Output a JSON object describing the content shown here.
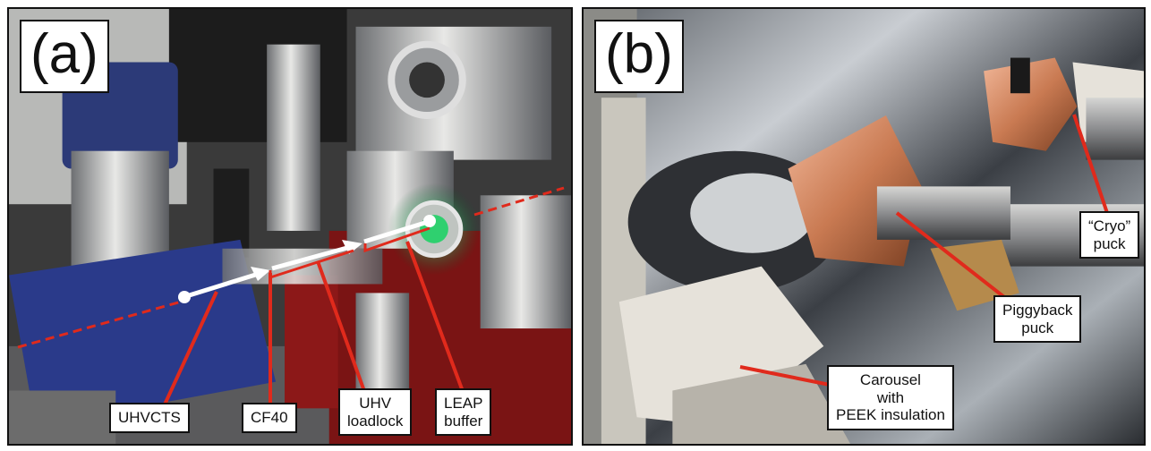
{
  "panels": [
    {
      "label": "(a)",
      "callouts": [
        "UHVCTS",
        "CF40",
        "UHV\nloadlock",
        "LEAP\nbuffer"
      ]
    },
    {
      "label": "(b)",
      "callouts": [
        "“Cryo”\npuck",
        "Piggyback\npuck",
        "Carousel\nwith\nPEEK insulation"
      ]
    }
  ],
  "colors": {
    "callout_line": "#e02a1c",
    "transfer_arrow": "#ffffff",
    "transfer_dash": "#e02a1c",
    "frame": "#111111",
    "anodized_plate": "#2a3a8a",
    "copper": "#d9926a"
  }
}
